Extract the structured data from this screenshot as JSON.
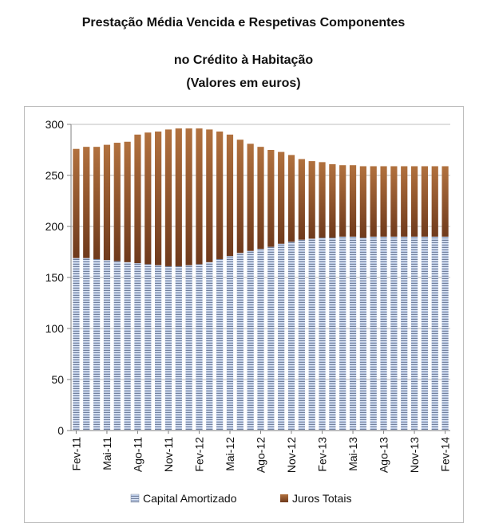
{
  "chart_data": {
    "type": "bar",
    "stacked": true,
    "title_lines": [
      "Prestação Média Vencida e Respetivas Componentes",
      "no Crédito à Habitação",
      "(Valores em euros)"
    ],
    "xlabel": "",
    "ylabel": "",
    "ylim": [
      0,
      300
    ],
    "yticks": [
      0,
      50,
      100,
      150,
      200,
      250,
      300
    ],
    "grid": true,
    "legend_position": "bottom",
    "categories": [
      "Fev-11",
      "Mar-11",
      "Abr-11",
      "Mai-11",
      "Jun-11",
      "Jul-11",
      "Ago-11",
      "Set-11",
      "Out-11",
      "Nov-11",
      "Dez-11",
      "Jan-12",
      "Fev-12",
      "Mar-12",
      "Abr-12",
      "Mai-12",
      "Jun-12",
      "Jul-12",
      "Ago-12",
      "Set-12",
      "Out-12",
      "Nov-12",
      "Dez-12",
      "Jan-13",
      "Fev-13",
      "Mar-13",
      "Abr-13",
      "Mai-13",
      "Jun-13",
      "Jul-13",
      "Ago-13",
      "Set-13",
      "Out-13",
      "Nov-13",
      "Dez-13",
      "Jan-14",
      "Fev-14"
    ],
    "tick_labels": [
      "Fev-11",
      "Mai-11",
      "Ago-11",
      "Nov-11",
      "Fev-12",
      "Mai-12",
      "Ago-12",
      "Nov-12",
      "Fev-13",
      "Mai-13",
      "Ago-13",
      "Nov-13",
      "Fev-14"
    ],
    "series": [
      {
        "name": "Capital Amortizado",
        "color": "#c9d6ef",
        "values": [
          169,
          169,
          168,
          167,
          166,
          165,
          164,
          163,
          162,
          161,
          161,
          162,
          163,
          165,
          168,
          171,
          174,
          176,
          178,
          180,
          183,
          185,
          187,
          188,
          189,
          189,
          190,
          190,
          189,
          190,
          190,
          190,
          190,
          190,
          190,
          190,
          190
        ]
      },
      {
        "name": "Juros Totais",
        "color": "#8b4a24",
        "values": [
          107,
          109,
          110,
          113,
          116,
          118,
          126,
          129,
          131,
          134,
          135,
          134,
          133,
          130,
          125,
          119,
          111,
          105,
          100,
          95,
          90,
          85,
          79,
          76,
          74,
          72,
          70,
          70,
          70,
          69,
          69,
          69,
          69,
          69,
          69,
          69,
          69
        ]
      }
    ]
  }
}
